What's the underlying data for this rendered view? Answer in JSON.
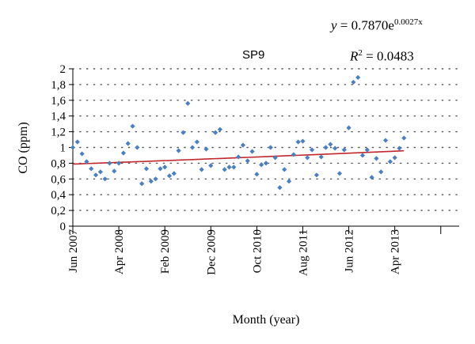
{
  "chart_data": {
    "type": "scatter",
    "title": "SP9",
    "equation": {
      "lhs": "y",
      "rhs": "= 0.7870e",
      "exponent": "0.0027x"
    },
    "r2": {
      "label": "R",
      "sup": "2",
      "value": "= 0.0483"
    },
    "xlabel": "Month (year)",
    "ylabel": "CO (ppm)",
    "ylim": [
      0,
      2
    ],
    "yticks": [
      "0",
      "0,2",
      "0,4",
      "0,6",
      "0,8",
      "1",
      "1,2",
      "1,4",
      "1,6",
      "1,8",
      "2"
    ],
    "xticks": [
      "Jun 2007",
      "Apr 2008",
      "Feb 2009",
      "Dec 2009",
      "Oct 2010",
      "Aug 2011",
      "Jun 2012",
      "Apr 2013"
    ],
    "xlim": [
      "Jun 2007",
      "Jun 2014"
    ],
    "grid": "dotted horizontal",
    "points": [
      {
        "x": "Jun 2007",
        "y": 1.0
      },
      {
        "x": "Jul 2007",
        "y": 1.07
      },
      {
        "x": "Aug 2007",
        "y": 0.92
      },
      {
        "x": "Sep 2007",
        "y": 0.82
      },
      {
        "x": "Oct 2007",
        "y": 0.73
      },
      {
        "x": "Nov 2007",
        "y": 0.65
      },
      {
        "x": "Dec 2007",
        "y": 0.69
      },
      {
        "x": "Jan 2008",
        "y": 0.6
      },
      {
        "x": "Feb 2008",
        "y": 0.8
      },
      {
        "x": "Mar 2008",
        "y": 0.7
      },
      {
        "x": "Apr 2008",
        "y": 0.8
      },
      {
        "x": "May 2008",
        "y": 0.93
      },
      {
        "x": "Jun 2008",
        "y": 1.05
      },
      {
        "x": "Jul 2008",
        "y": 1.27
      },
      {
        "x": "Aug 2008",
        "y": 1.0
      },
      {
        "x": "Sep 2008",
        "y": 0.54
      },
      {
        "x": "Oct 2008",
        "y": 0.73
      },
      {
        "x": "Nov 2008",
        "y": 0.57
      },
      {
        "x": "Dec 2008",
        "y": 0.6
      },
      {
        "x": "Jan 2009",
        "y": 0.73
      },
      {
        "x": "Feb 2009",
        "y": 0.75
      },
      {
        "x": "Mar 2009",
        "y": 0.64
      },
      {
        "x": "Apr 2009",
        "y": 0.67
      },
      {
        "x": "May 2009",
        "y": 0.96
      },
      {
        "x": "Jun 2009",
        "y": 1.19
      },
      {
        "x": "Jul 2009",
        "y": 1.56
      },
      {
        "x": "Aug 2009",
        "y": 1.0
      },
      {
        "x": "Sep 2009",
        "y": 1.07
      },
      {
        "x": "Oct 2009",
        "y": 0.72
      },
      {
        "x": "Nov 2009",
        "y": 0.98
      },
      {
        "x": "Dec 2009",
        "y": 0.77
      },
      {
        "x": "Jan 2010",
        "y": 1.19
      },
      {
        "x": "Feb 2010",
        "y": 1.23
      },
      {
        "x": "Mar 2010",
        "y": 0.72
      },
      {
        "x": "Apr 2010",
        "y": 0.75
      },
      {
        "x": "May 2010",
        "y": 0.75
      },
      {
        "x": "Jun 2010",
        "y": 0.88
      },
      {
        "x": "Jul 2010",
        "y": 1.03
      },
      {
        "x": "Aug 2010",
        "y": 0.83
      },
      {
        "x": "Sep 2010",
        "y": 0.95
      },
      {
        "x": "Oct 2010",
        "y": 0.66
      },
      {
        "x": "Nov 2010",
        "y": 0.78
      },
      {
        "x": "Dec 2010",
        "y": 0.8
      },
      {
        "x": "Jan 2011",
        "y": 1.0
      },
      {
        "x": "Feb 2011",
        "y": 0.87
      },
      {
        "x": "Mar 2011",
        "y": 0.49
      },
      {
        "x": "Apr 2011",
        "y": 0.72
      },
      {
        "x": "May 2011",
        "y": 0.57
      },
      {
        "x": "Jun 2011",
        "y": 0.91
      },
      {
        "x": "Jul 2011",
        "y": 1.07
      },
      {
        "x": "Aug 2011",
        "y": 1.08
      },
      {
        "x": "Sep 2011",
        "y": 0.87
      },
      {
        "x": "Oct 2011",
        "y": 0.97
      },
      {
        "x": "Nov 2011",
        "y": 0.65
      },
      {
        "x": "Dec 2011",
        "y": 0.88
      },
      {
        "x": "Jan 2012",
        "y": 1.0
      },
      {
        "x": "Feb 2012",
        "y": 1.04
      },
      {
        "x": "Mar 2012",
        "y": 0.99
      },
      {
        "x": "Apr 2012",
        "y": 0.67
      },
      {
        "x": "May 2012",
        "y": 0.97
      },
      {
        "x": "Jun 2012",
        "y": 1.25
      },
      {
        "x": "Jul 2012",
        "y": 1.83
      },
      {
        "x": "Aug 2012",
        "y": 1.89
      },
      {
        "x": "Sep 2012",
        "y": 0.9
      },
      {
        "x": "Oct 2012",
        "y": 0.97
      },
      {
        "x": "Nov 2012",
        "y": 0.62
      },
      {
        "x": "Dec 2012",
        "y": 0.86
      },
      {
        "x": "Jan 2013",
        "y": 0.69
      },
      {
        "x": "Feb 2013",
        "y": 1.09
      },
      {
        "x": "Mar 2013",
        "y": 0.82
      },
      {
        "x": "Apr 2013",
        "y": 0.87
      },
      {
        "x": "May 2013",
        "y": 0.99
      },
      {
        "x": "Jun 2013",
        "y": 1.12
      }
    ],
    "trendline": {
      "type": "exponential",
      "a": 0.787,
      "b": 0.0027,
      "x_from": "Jun 2007",
      "x_to": "Jun 2013"
    },
    "colors": {
      "points": "#4a7fc1",
      "trendline": "#c0282d",
      "axis": "#000000",
      "grid": "#555555"
    }
  }
}
